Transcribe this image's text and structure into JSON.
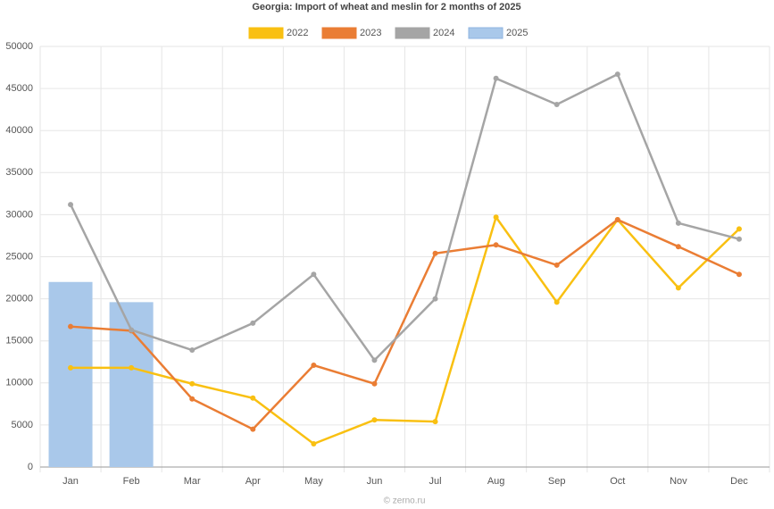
{
  "chart_data": {
    "type": "line",
    "title": "Georgia: Import of wheat and meslin for 2 months of 2025",
    "categories": [
      "Jan",
      "Feb",
      "Mar",
      "Apr",
      "May",
      "Jun",
      "Jul",
      "Aug",
      "Sep",
      "Oct",
      "Nov",
      "Dec"
    ],
    "series": [
      {
        "name": "2022",
        "color": "#f9c011",
        "values": [
          11800,
          11800,
          9900,
          8200,
          2760,
          5600,
          5400,
          29700,
          19600,
          29400,
          21300,
          28300
        ]
      },
      {
        "name": "2023",
        "color": "#ea7d34",
        "values": [
          16700,
          16200,
          8100,
          4500,
          12100,
          9900,
          25400,
          26400,
          24000,
          29400,
          26200,
          22900
        ]
      },
      {
        "name": "2024",
        "color": "#a5a5a5",
        "values": [
          31200,
          16300,
          13900,
          17100,
          22900,
          12700,
          20000,
          46200,
          43100,
          46700,
          29000,
          27100
        ]
      },
      {
        "name": "2025",
        "color": "#a9c8ea",
        "type": "bar",
        "values": [
          22000,
          19600,
          null,
          null,
          null,
          null,
          null,
          null,
          null,
          null,
          null,
          null
        ]
      }
    ],
    "ylim": [
      0,
      50000
    ],
    "yticks": [
      0,
      5000,
      10000,
      15000,
      20000,
      25000,
      30000,
      35000,
      40000,
      45000,
      50000
    ],
    "grid": true,
    "legend": "top",
    "source": "© zerno.ru"
  }
}
